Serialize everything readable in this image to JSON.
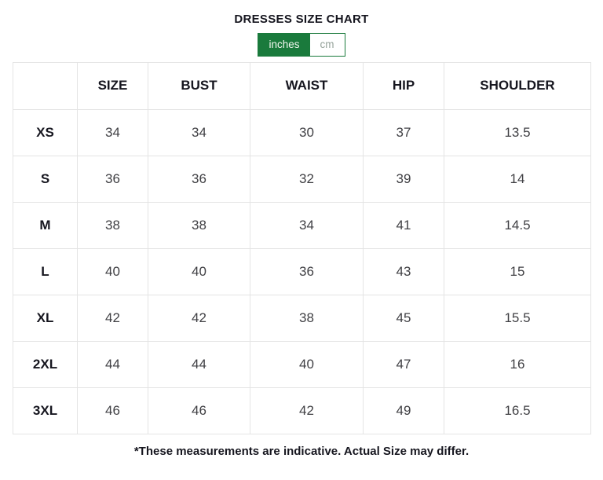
{
  "title": "DRESSES SIZE CHART",
  "unit_toggle": {
    "options": [
      {
        "label": "inches",
        "active": true
      },
      {
        "label": "cm",
        "active": false
      }
    ]
  },
  "colors": {
    "accent_green": "#1a7a3c",
    "table_border": "#e4e4e4",
    "heading_text": "#16161f",
    "cell_text": "#404044",
    "inactive_toggle_text": "#96a39b"
  },
  "table": {
    "columns": [
      "",
      "SIZE",
      "BUST",
      "WAIST",
      "HIP",
      "SHOULDER"
    ],
    "rows": [
      {
        "label": "XS",
        "values": [
          "34",
          "34",
          "30",
          "37",
          "13.5"
        ]
      },
      {
        "label": "S",
        "values": [
          "36",
          "36",
          "32",
          "39",
          "14"
        ]
      },
      {
        "label": "M",
        "values": [
          "38",
          "38",
          "34",
          "41",
          "14.5"
        ]
      },
      {
        "label": "L",
        "values": [
          "40",
          "40",
          "36",
          "43",
          "15"
        ]
      },
      {
        "label": "XL",
        "values": [
          "42",
          "42",
          "38",
          "45",
          "15.5"
        ]
      },
      {
        "label": "2XL",
        "values": [
          "44",
          "44",
          "40",
          "47",
          "16"
        ]
      },
      {
        "label": "3XL",
        "values": [
          "46",
          "46",
          "42",
          "49",
          "16.5"
        ]
      }
    ]
  },
  "footnote": "*These measurements are indicative. Actual Size may differ."
}
